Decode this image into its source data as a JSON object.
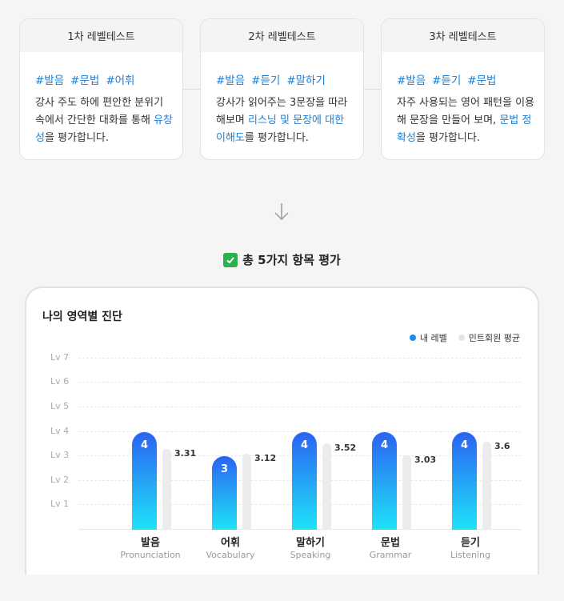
{
  "cards": [
    {
      "title": "1차 레벨테스트",
      "tags": [
        "#발음",
        "#문법",
        "#어휘"
      ],
      "desc": [
        {
          "t": "강사 주도 하에 편안한 분위기 속에서 간단한 대화를 통해 "
        },
        {
          "t": "유창성",
          "hl": true
        },
        {
          "t": "을 평가합니다."
        }
      ]
    },
    {
      "title": "2차 레벨테스트",
      "tags": [
        "#발음",
        "#듣기",
        "#말하기"
      ],
      "desc": [
        {
          "t": "강사가 읽어주는 3문장을 따라 해보며 "
        },
        {
          "t": "리스닝 및 문장에 대한 이해도",
          "hl": true
        },
        {
          "t": "를 평가합니다."
        }
      ]
    },
    {
      "title": "3차 레벨테스트",
      "tags": [
        "#발음",
        "#듣기",
        "#문법"
      ],
      "desc": [
        {
          "t": "자주 사용되는 영어 패턴을 이용해 문장을 만들어 보며, "
        },
        {
          "t": "문법 정확성",
          "hl": true
        },
        {
          "t": "을 평가합니다."
        }
      ]
    }
  ],
  "summary": {
    "text": "총 5가지 항목 평가"
  },
  "panel": {
    "title": "나의 영역별 진단",
    "legend": {
      "mine": "내 레벨",
      "avg": "민트회원 평균"
    }
  },
  "colors": {
    "accent": "#1a7fd6",
    "bar_top": "#2b63f2",
    "bar_bottom": "#1fe3f8",
    "avg_bar": "#ececec",
    "check": "#2bb24c"
  },
  "chart_data": {
    "type": "bar",
    "categories": [
      "발음",
      "어휘",
      "말하기",
      "문법",
      "듣기"
    ],
    "categories_en": [
      "Pronunciation",
      "Vocabulary",
      "Speaking",
      "Grammar",
      "Listening"
    ],
    "y_ticks": [
      "Lv 1",
      "Lv 2",
      "Lv 3",
      "Lv 4",
      "Lv 5",
      "Lv 6",
      "Lv 7"
    ],
    "ylim": [
      0,
      7
    ],
    "series": [
      {
        "name": "내 레벨",
        "values": [
          4,
          3,
          4,
          4,
          4
        ]
      },
      {
        "name": "민트회원 평균",
        "values": [
          3.31,
          3.12,
          3.52,
          3.03,
          3.6
        ]
      }
    ],
    "grid": true,
    "legend": "top-right"
  }
}
